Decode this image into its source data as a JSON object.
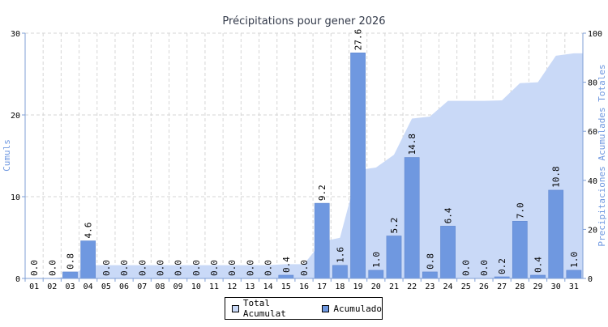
{
  "chart_data": {
    "type": "bar",
    "title": "Précipitations pour gener 2026",
    "ylabel_left": "Cumuls",
    "ylabel_right": "Precipitaciones Acumulades Totales",
    "categories": [
      "01",
      "02",
      "03",
      "04",
      "05",
      "06",
      "07",
      "08",
      "09",
      "10",
      "11",
      "12",
      "13",
      "14",
      "15",
      "16",
      "17",
      "18",
      "19",
      "20",
      "21",
      "22",
      "23",
      "24",
      "25",
      "26",
      "27",
      "28",
      "29",
      "30",
      "31"
    ],
    "left_ticks": [
      0,
      10,
      20,
      30
    ],
    "right_ticks": [
      0,
      20,
      40,
      60,
      80,
      100
    ],
    "ylim_left": [
      0,
      30
    ],
    "ylim_right": [
      0,
      100
    ],
    "grid": true,
    "legend_position": "bottom-center",
    "series": [
      {
        "name": "Total Acumulat",
        "type": "area",
        "axis": "right",
        "color": "#c9d9f7",
        "values": [
          0,
          0,
          0.8,
          5.4,
          5.4,
          5.4,
          5.4,
          5.4,
          5.4,
          5.4,
          5.4,
          5.4,
          5.4,
          5.4,
          5.8,
          5.8,
          15.0,
          16.6,
          44.2,
          45.2,
          50.4,
          65.2,
          66.0,
          72.4,
          72.4,
          72.4,
          72.6,
          79.6,
          80.0,
          90.8,
          91.8
        ]
      },
      {
        "name": "Acumulado",
        "type": "bar",
        "axis": "left",
        "color": "#6f98e0",
        "values": [
          0.0,
          0.0,
          0.8,
          4.6,
          0.0,
          0.0,
          0.0,
          0.0,
          0.0,
          0.0,
          0.0,
          0.0,
          0.0,
          0.0,
          0.4,
          0.0,
          9.2,
          1.6,
          27.6,
          1.0,
          5.2,
          14.8,
          0.8,
          6.4,
          0.0,
          0.0,
          0.2,
          7.0,
          0.4,
          10.8,
          1.0
        ],
        "labels": [
          "0.0",
          "0.0",
          "0.8",
          "4.6",
          "0.0",
          "0.0",
          "0.0",
          "0.0",
          "0.0",
          "0.0",
          "0.0",
          "0.0",
          "0.0",
          "0.0",
          "0.4",
          "0.0",
          "9.2",
          "1.6",
          "27.6",
          "1.0",
          "5.2",
          "14.8",
          "0.8",
          "6.4",
          "0.0",
          "0.0",
          "0.2",
          "7.0",
          "0.4",
          "10.8",
          "1.0"
        ]
      }
    ]
  },
  "legend": {
    "total_label": "Total Acumulat",
    "acumulado_label": "Acumulado"
  }
}
